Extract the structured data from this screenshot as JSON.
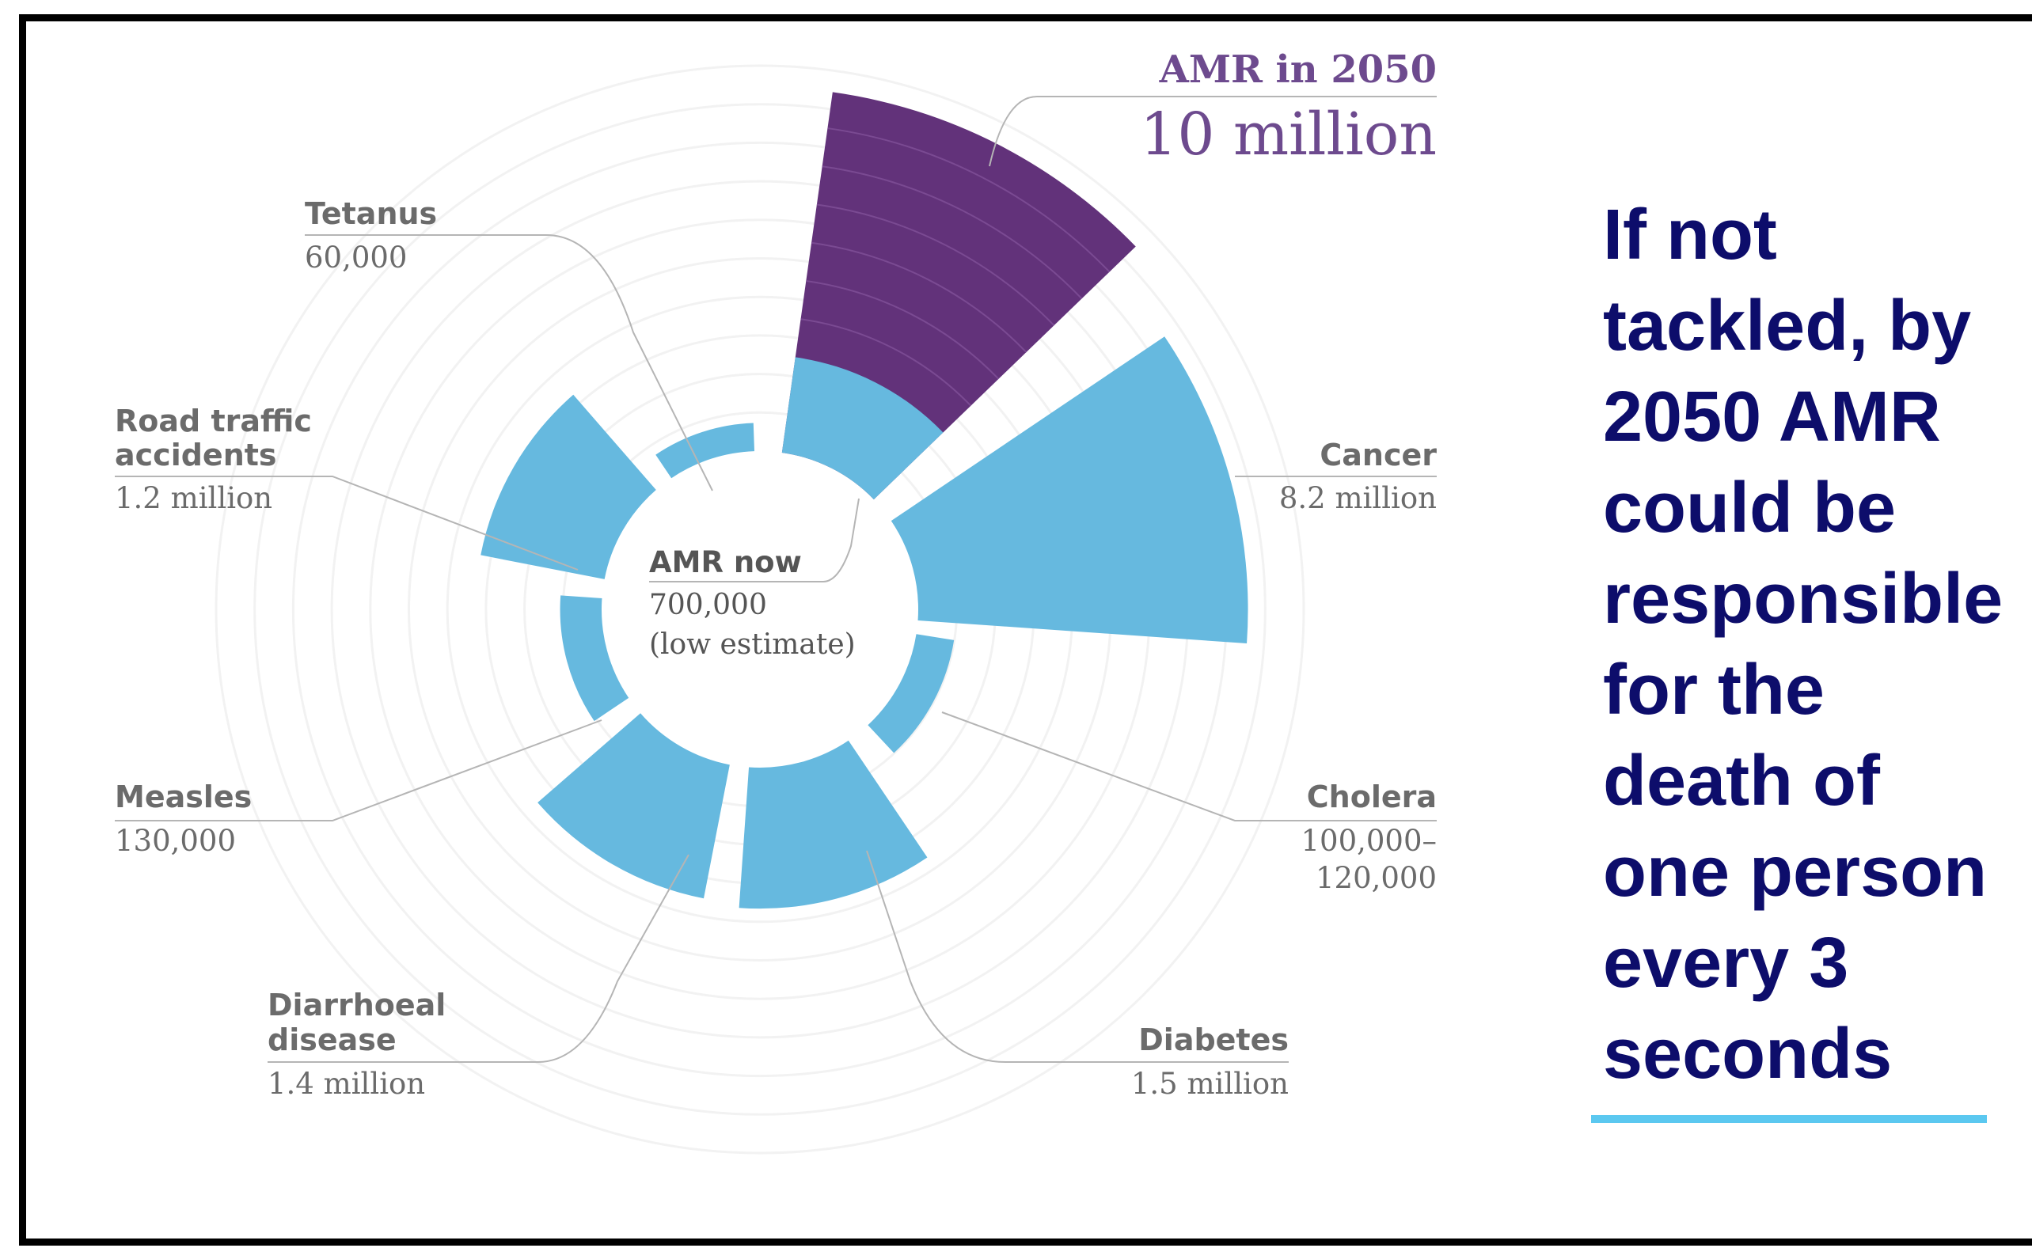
{
  "chart_data": {
    "type": "radial-bar",
    "headline": {
      "title": "AMR in 2050",
      "value_label": "10 million"
    },
    "center": {
      "title": "AMR now",
      "value": "700,000",
      "note": "(low estimate)"
    },
    "categories": [
      {
        "name": "AMR in 2050",
        "value_label": "10 million",
        "value": 10000000
      },
      {
        "name": "Cancer",
        "value_label": "8.2 million",
        "value": 8200000
      },
      {
        "name": "Cholera",
        "value_label": "100,000–",
        "value_label_2": "120,000",
        "value": 110000
      },
      {
        "name": "Diabetes",
        "value_label": "1.5 million",
        "value": 1500000
      },
      {
        "name": "Diarrhoeal",
        "name_2": "disease",
        "value_label": "1.4 million",
        "value": 1400000
      },
      {
        "name": "Measles",
        "value_label": "130,000",
        "value": 130000
      },
      {
        "name": "Road traffic",
        "name_2": "accidents",
        "value_label": "1.2 million",
        "value": 1200000
      },
      {
        "name": "Tetanus",
        "value_label": "60,000",
        "value": 60000
      }
    ],
    "current_amr": 700000,
    "colors": {
      "amr_2050": "#613178",
      "amr_2050_fill": "#62327a",
      "cause": "#66b9df",
      "ring": "#f2f2f2",
      "label": "#6b6b6b",
      "amr_text": "#6d4a8e"
    }
  },
  "side_text": {
    "lines": [
      "If not",
      "tackled, by",
      "2050 AMR",
      "could be",
      "responsible",
      "for the",
      "death of",
      "one person",
      "every 3",
      "seconds"
    ],
    "color": "#0d0d6b",
    "accent_color": "#5bc8f0"
  }
}
